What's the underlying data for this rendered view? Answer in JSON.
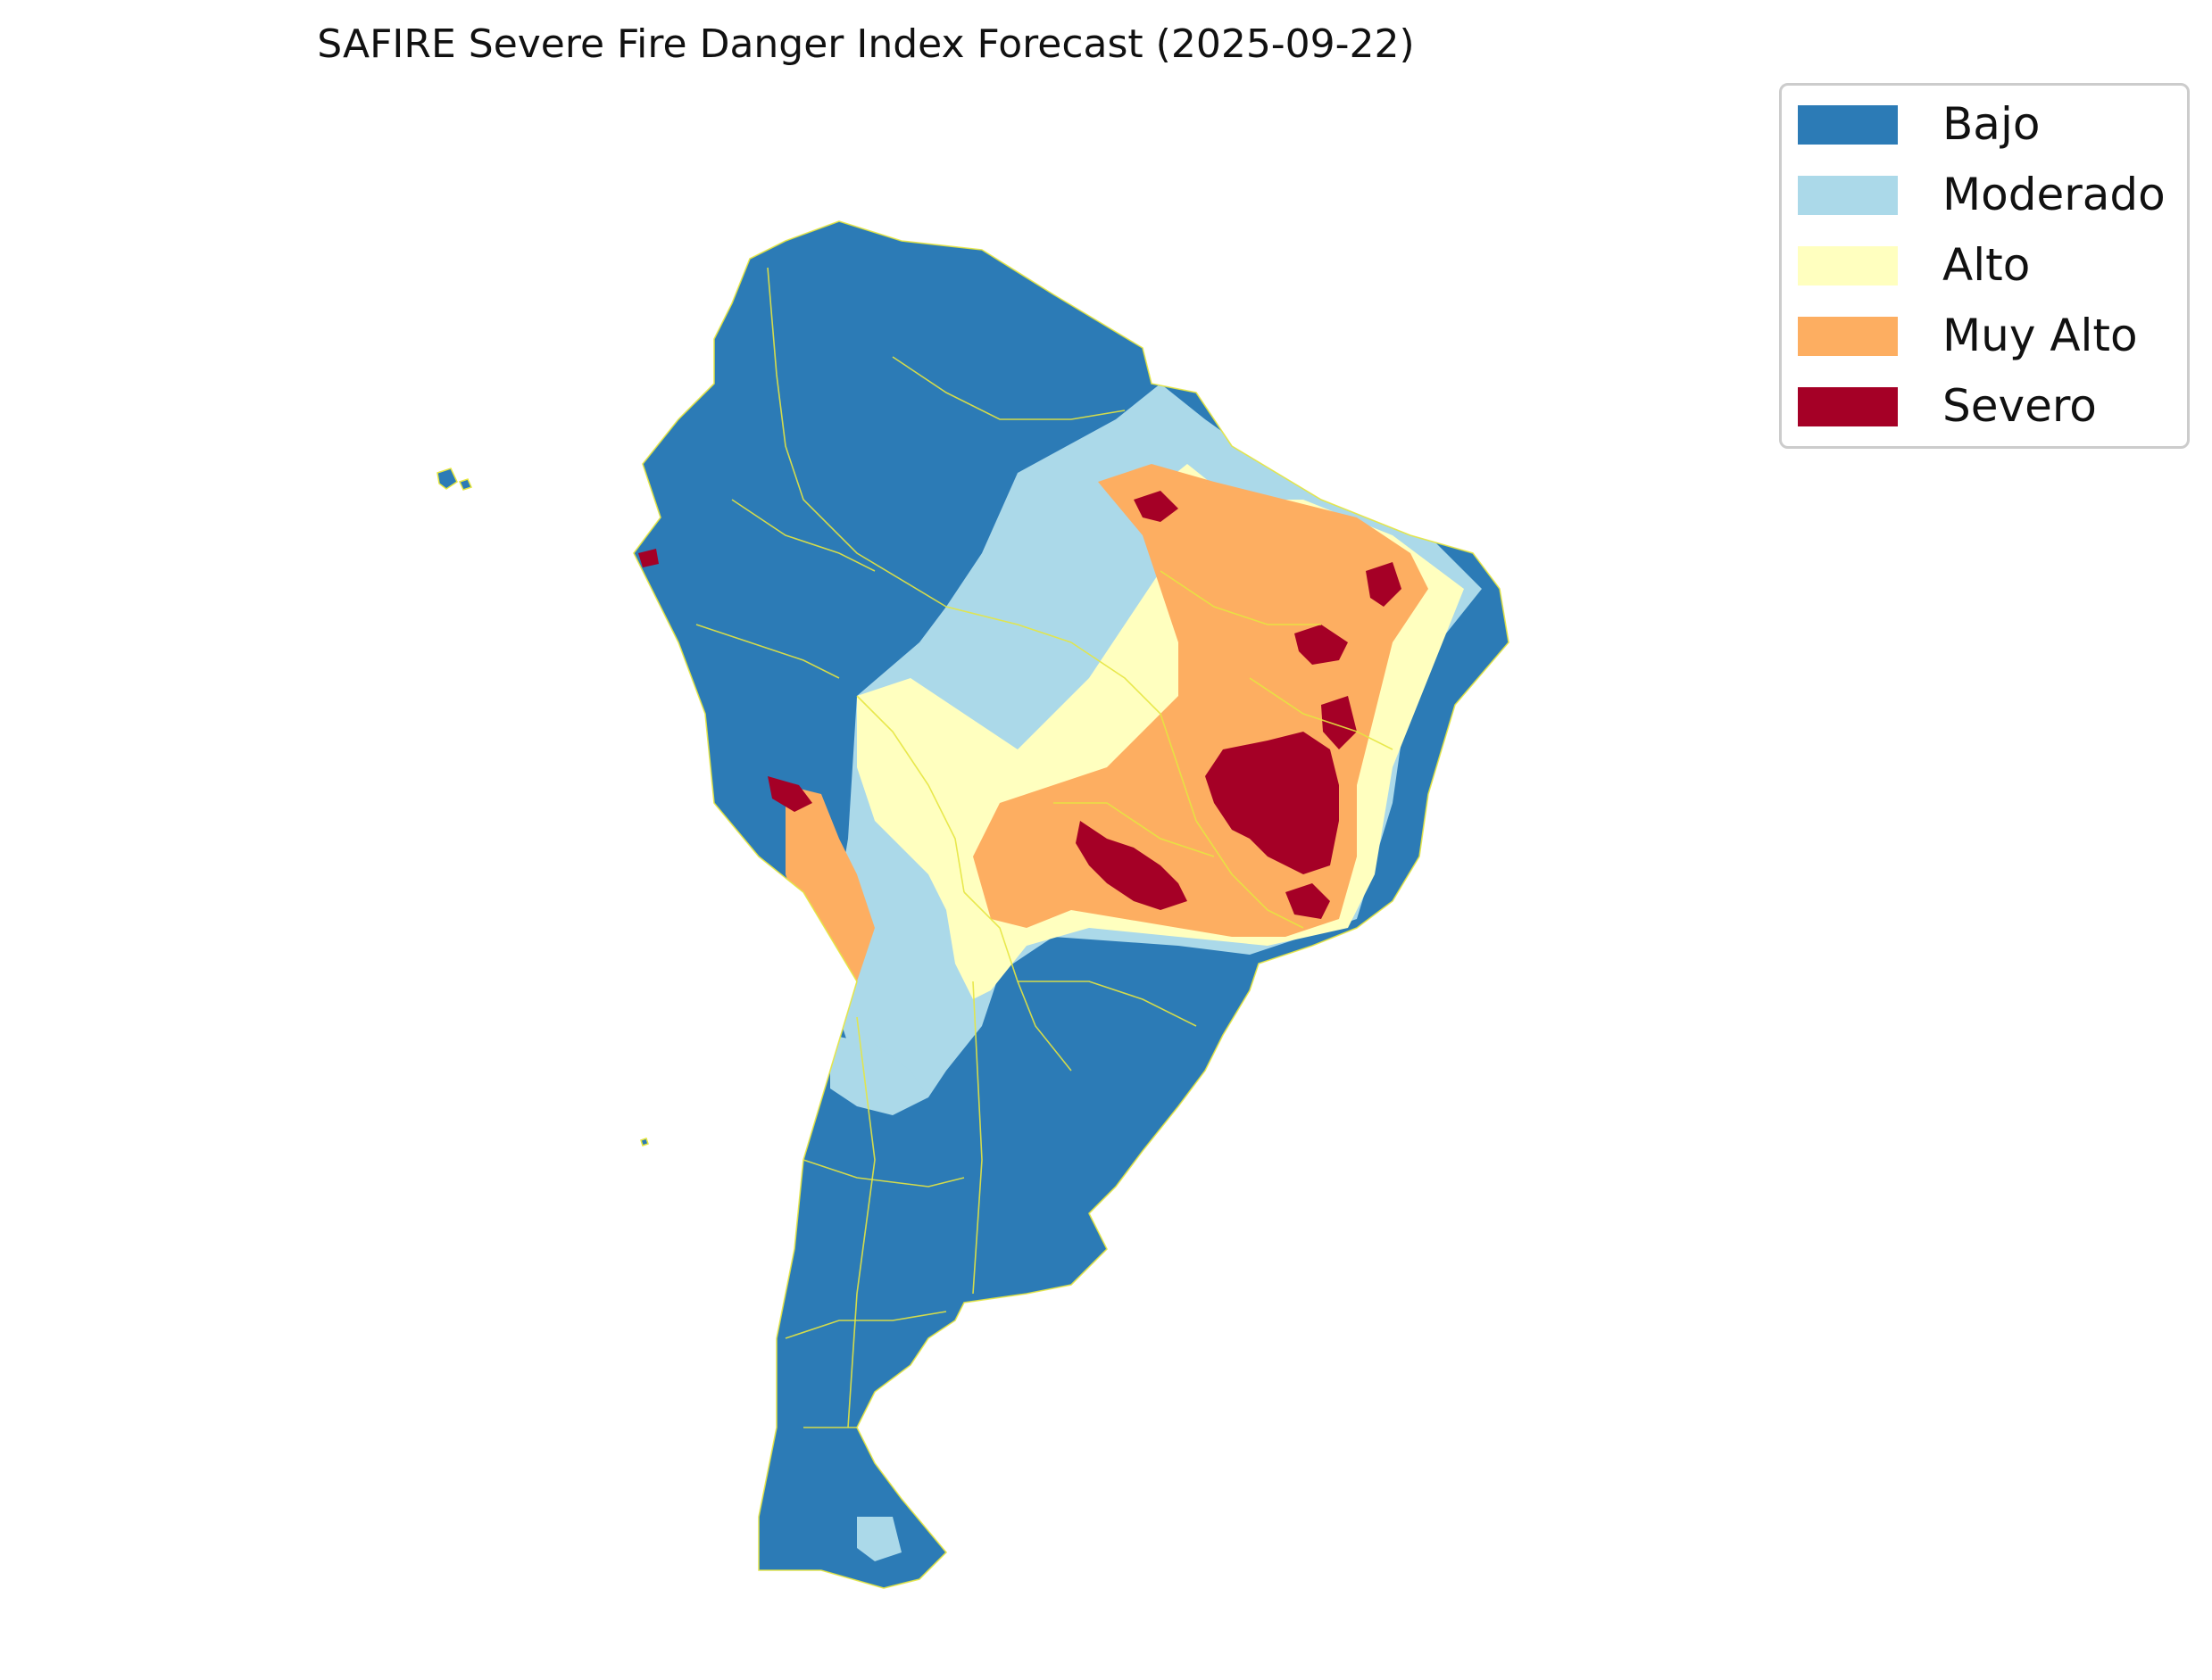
{
  "title": "SAFIRE Severe Fire Danger Index Forecast (2025-09-22)",
  "legend": {
    "items": [
      {
        "label": "Bajo",
        "color": "#2c7bb6"
      },
      {
        "label": "Moderado",
        "color": "#abd9e9"
      },
      {
        "label": "Alto",
        "color": "#ffffbf"
      },
      {
        "label": "Muy Alto",
        "color": "#fdae61"
      },
      {
        "label": "Severo",
        "color": "#a50026"
      }
    ]
  },
  "map": {
    "region": "South America",
    "border_color": "#e6e640"
  }
}
